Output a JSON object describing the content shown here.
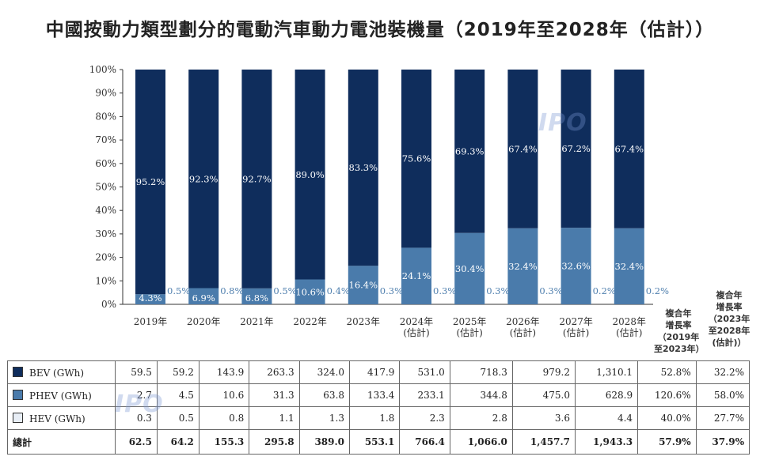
{
  "title": "中國按動力類型劃分的電動汽車動力電池裝機量（2019年至2028年（估計））",
  "colors": {
    "bev": "#0f2d5c",
    "phev": "#4a7bab",
    "hev": "#e8eef6",
    "axis": "#333333"
  },
  "chart_data": {
    "type": "bar",
    "stacked": true,
    "percent": true,
    "categories": [
      "2019年",
      "2020年",
      "2021年",
      "2022年",
      "2023年",
      "2024年\n(估計)",
      "2025年\n(估計)",
      "2026年\n(估計)",
      "2027年\n(估計)",
      "2028年\n(估計)"
    ],
    "ylim": [
      0,
      100
    ],
    "yticks": [
      "0%",
      "10%",
      "20%",
      "30%",
      "40%",
      "50%",
      "60%",
      "70%",
      "80%",
      "90%",
      "100%"
    ],
    "series": [
      {
        "name": "BEV (GWh)",
        "key": "bev",
        "values": [
          95.2,
          92.3,
          92.7,
          89.0,
          83.3,
          75.6,
          69.3,
          67.4,
          67.2,
          67.4
        ],
        "labels": [
          "95.2%",
          "92.3%",
          "92.7%",
          "89.0%",
          "83.3%",
          "75.6%",
          "69.3%",
          "67.4%",
          "67.2%",
          "67.4%"
        ]
      },
      {
        "name": "PHEV (GWh)",
        "key": "phev",
        "values": [
          4.3,
          6.9,
          6.8,
          10.6,
          16.4,
          24.1,
          30.4,
          32.4,
          32.6,
          32.4
        ],
        "labels": [
          "4.3%",
          "6.9%",
          "6.8%",
          "10.6%",
          "16.4%",
          "24.1%",
          "30.4%",
          "32.4%",
          "32.6%",
          "32.4%"
        ]
      },
      {
        "name": "HEV (GWh)",
        "key": "hev",
        "values": [
          0.5,
          0.8,
          0.5,
          0.4,
          0.3,
          0.3,
          0.3,
          0.3,
          0.2,
          0.2
        ],
        "labels": [
          "0.5%",
          "0.8%",
          "0.5%",
          "0.4%",
          "0.3%",
          "0.3%",
          "0.3%",
          "0.3%",
          "0.2%",
          "0.2%"
        ]
      }
    ],
    "cagr_headers": [
      {
        "lines": [
          "複合年",
          "增長率",
          "（2019年",
          "至2023年）"
        ]
      },
      {
        "lines": [
          "複合年",
          "增長率",
          "（2023年",
          "至2028年",
          "(估計)）"
        ]
      }
    ],
    "table": {
      "rows": [
        {
          "label": "BEV (GWh)",
          "swatch": "bev",
          "cells": [
            "59.5",
            "59.2",
            "143.9",
            "263.3",
            "324.0",
            "417.9",
            "531.0",
            "718.3",
            "979.2",
            "1,310.1",
            "52.8%",
            "32.2%"
          ]
        },
        {
          "label": "PHEV (GWh)",
          "swatch": "phev",
          "cells": [
            "2.7",
            "4.5",
            "10.6",
            "31.3",
            "63.8",
            "133.4",
            "233.1",
            "344.8",
            "475.0",
            "628.9",
            "120.6%",
            "58.0%"
          ]
        },
        {
          "label": "HEV (GWh)",
          "swatch": "hev",
          "cells": [
            "0.3",
            "0.5",
            "0.8",
            "1.1",
            "1.3",
            "1.8",
            "2.3",
            "2.8",
            "3.6",
            "4.4",
            "40.0%",
            "27.7%"
          ]
        },
        {
          "label": "總計",
          "swatch": "",
          "cells": [
            "62.5",
            "64.2",
            "155.3",
            "295.8",
            "389.0",
            "553.1",
            "766.4",
            "1,066.0",
            "1,457.7",
            "1,943.3",
            "57.9%",
            "37.9%"
          ]
        }
      ]
    }
  },
  "watermark": {
    "text": "IPO"
  }
}
